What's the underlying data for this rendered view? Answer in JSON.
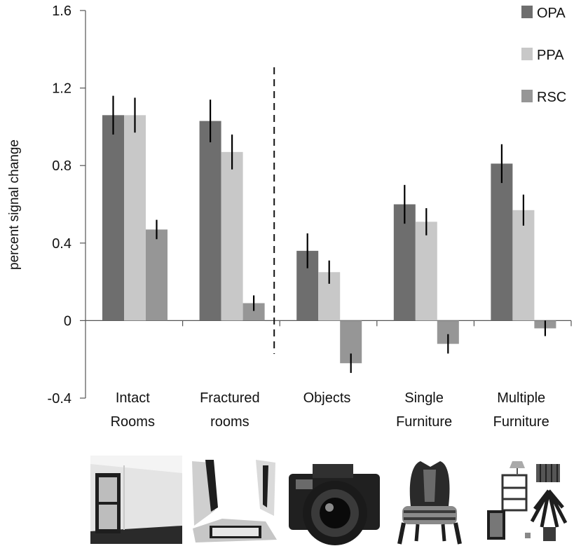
{
  "chart_data": {
    "type": "bar",
    "title": "",
    "xlabel": "",
    "ylabel": "percent signal change",
    "ylim": [
      -0.4,
      1.6
    ],
    "yticks": [
      "1.6",
      "1.2",
      "0.8",
      "0.4",
      "0",
      "-0.4"
    ],
    "ytick_values": [
      1.6,
      1.2,
      0.8,
      0.4,
      0,
      -0.4
    ],
    "grid": false,
    "legend_position": "top-right",
    "divider_after_category": 2,
    "categories": [
      [
        "Intact",
        "Rooms"
      ],
      [
        "Fractured",
        "rooms"
      ],
      [
        "Objects"
      ],
      [
        "Single",
        "Furniture"
      ],
      [
        "Multiple",
        "Furniture"
      ]
    ],
    "series": [
      {
        "name": "OPA",
        "color": "#6e6e6e",
        "values": [
          1.06,
          1.03,
          0.36,
          0.6,
          0.81
        ],
        "errors": [
          0.1,
          0.11,
          0.09,
          0.1,
          0.1
        ]
      },
      {
        "name": "PPA",
        "color": "#c8c8c8",
        "values": [
          1.06,
          0.87,
          0.25,
          0.51,
          0.57
        ],
        "errors": [
          0.09,
          0.09,
          0.06,
          0.07,
          0.08
        ]
      },
      {
        "name": "RSC",
        "color": "#969696",
        "values": [
          0.47,
          0.09,
          -0.22,
          -0.12,
          -0.04
        ],
        "errors": [
          0.05,
          0.04,
          0.05,
          0.05,
          0.04
        ]
      }
    ],
    "images": [
      "room-photo-icon",
      "fractured-room-photo-icon",
      "camera-photo-icon",
      "chair-photo-icon",
      "furniture-collage-icon"
    ]
  }
}
